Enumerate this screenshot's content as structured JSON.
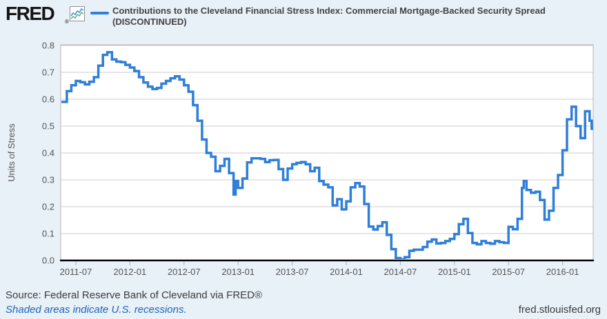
{
  "header": {
    "logo_text": "FRED",
    "registered_mark": "®",
    "legend_label_line1": "Contributions to the Cleveland Financial Stress Index: Commercial Mortgage-Backed Security Spread",
    "legend_label_line2": "(DISCONTINUED)"
  },
  "footer": {
    "source_text": "Source: Federal Reserve Bank of Cleveland via FRED®",
    "recession_note": "Shaded areas indicate U.S. recessions.",
    "site_url": "fred.stlouisfed.org"
  },
  "colors": {
    "background": "#e8f0f8",
    "plot_background": "#ffffff",
    "line": "#2f7ed8",
    "gridline": "#cccccc",
    "plot_border": "#b3b3b3",
    "axis_line": "#000000",
    "tick_mark": "#9db3c8",
    "tick_text": "#555555",
    "title_text": "#434343",
    "link_blue": "#1b66b5",
    "icon_line_blue": "#4a90d9",
    "icon_line_green": "#5cb88a"
  },
  "chart_data": {
    "type": "line",
    "interpolation": "step-after",
    "title": "Contributions to the Cleveland Financial Stress Index: Commercial Mortgage-Backed Security Spread (DISCONTINUED)",
    "xlabel": "",
    "ylabel": "Units of Stress",
    "ylim": [
      0.0,
      0.8
    ],
    "yticks": [
      0.0,
      0.1,
      0.2,
      0.3,
      0.4,
      0.5,
      0.6,
      0.7,
      0.8
    ],
    "xtick_labels": [
      "2011-07",
      "2012-01",
      "2012-07",
      "2013-01",
      "2013-07",
      "2014-01",
      "2014-07",
      "2015-01",
      "2015-07",
      "2016-01"
    ],
    "grid": true,
    "legend_position": "top",
    "series": [
      {
        "name": "Contributions to the Cleveland Financial Stress Index: Commercial Mortgage-Backed Security Spread (DISCONTINUED)",
        "points": [
          [
            "2011-05-13",
            0.59
          ],
          [
            "2011-06-01",
            0.63
          ],
          [
            "2011-06-16",
            0.652
          ],
          [
            "2011-07-01",
            0.668
          ],
          [
            "2011-07-16",
            0.663
          ],
          [
            "2011-08-01",
            0.655
          ],
          [
            "2011-08-16",
            0.665
          ],
          [
            "2011-09-01",
            0.682
          ],
          [
            "2011-09-16",
            0.725
          ],
          [
            "2011-10-01",
            0.765
          ],
          [
            "2011-10-16",
            0.775
          ],
          [
            "2011-11-01",
            0.748
          ],
          [
            "2011-11-16",
            0.74
          ],
          [
            "2011-12-01",
            0.738
          ],
          [
            "2011-12-16",
            0.728
          ],
          [
            "2012-01-01",
            0.718
          ],
          [
            "2012-01-16",
            0.705
          ],
          [
            "2012-02-01",
            0.682
          ],
          [
            "2012-02-16",
            0.662
          ],
          [
            "2012-03-01",
            0.647
          ],
          [
            "2012-03-16",
            0.638
          ],
          [
            "2012-04-01",
            0.642
          ],
          [
            "2012-04-16",
            0.658
          ],
          [
            "2012-05-01",
            0.668
          ],
          [
            "2012-05-16",
            0.678
          ],
          [
            "2012-06-01",
            0.685
          ],
          [
            "2012-06-16",
            0.673
          ],
          [
            "2012-07-01",
            0.652
          ],
          [
            "2012-07-16",
            0.628
          ],
          [
            "2012-08-01",
            0.578
          ],
          [
            "2012-08-16",
            0.52
          ],
          [
            "2012-09-01",
            0.45
          ],
          [
            "2012-09-16",
            0.4
          ],
          [
            "2012-10-01",
            0.386
          ],
          [
            "2012-10-16",
            0.332
          ],
          [
            "2012-11-01",
            0.352
          ],
          [
            "2012-11-16",
            0.378
          ],
          [
            "2012-12-01",
            0.325
          ],
          [
            "2012-12-16",
            0.245
          ],
          [
            "2012-12-23",
            0.295
          ],
          [
            "2013-01-01",
            0.27
          ],
          [
            "2013-01-16",
            0.305
          ],
          [
            "2013-02-01",
            0.365
          ],
          [
            "2013-02-16",
            0.38
          ],
          [
            "2013-03-01",
            0.38
          ],
          [
            "2013-03-16",
            0.378
          ],
          [
            "2013-04-01",
            0.366
          ],
          [
            "2013-04-16",
            0.373
          ],
          [
            "2013-05-01",
            0.374
          ],
          [
            "2013-05-16",
            0.34
          ],
          [
            "2013-06-01",
            0.3
          ],
          [
            "2013-06-16",
            0.342
          ],
          [
            "2013-07-01",
            0.358
          ],
          [
            "2013-07-16",
            0.363
          ],
          [
            "2013-08-01",
            0.366
          ],
          [
            "2013-08-16",
            0.358
          ],
          [
            "2013-09-01",
            0.332
          ],
          [
            "2013-09-16",
            0.345
          ],
          [
            "2013-10-01",
            0.295
          ],
          [
            "2013-10-16",
            0.282
          ],
          [
            "2013-11-01",
            0.272
          ],
          [
            "2013-11-16",
            0.205
          ],
          [
            "2013-12-01",
            0.228
          ],
          [
            "2013-12-16",
            0.19
          ],
          [
            "2014-01-01",
            0.22
          ],
          [
            "2014-01-16",
            0.272
          ],
          [
            "2014-02-01",
            0.288
          ],
          [
            "2014-02-16",
            0.275
          ],
          [
            "2014-03-01",
            0.21
          ],
          [
            "2014-03-16",
            0.126
          ],
          [
            "2014-04-01",
            0.115
          ],
          [
            "2014-04-16",
            0.128
          ],
          [
            "2014-05-01",
            0.142
          ],
          [
            "2014-05-16",
            0.095
          ],
          [
            "2014-06-01",
            0.042
          ],
          [
            "2014-06-16",
            0.009
          ],
          [
            "2014-07-01",
            0.004
          ],
          [
            "2014-07-16",
            0.012
          ],
          [
            "2014-08-01",
            0.036
          ],
          [
            "2014-08-16",
            0.04
          ],
          [
            "2014-09-01",
            0.04
          ],
          [
            "2014-09-16",
            0.05
          ],
          [
            "2014-10-01",
            0.07
          ],
          [
            "2014-10-16",
            0.078
          ],
          [
            "2014-11-01",
            0.063
          ],
          [
            "2014-11-16",
            0.065
          ],
          [
            "2014-12-01",
            0.072
          ],
          [
            "2014-12-16",
            0.08
          ],
          [
            "2015-01-01",
            0.098
          ],
          [
            "2015-01-16",
            0.135
          ],
          [
            "2015-02-01",
            0.155
          ],
          [
            "2015-02-16",
            0.102
          ],
          [
            "2015-03-01",
            0.065
          ],
          [
            "2015-03-16",
            0.06
          ],
          [
            "2015-04-01",
            0.072
          ],
          [
            "2015-04-16",
            0.065
          ],
          [
            "2015-05-01",
            0.062
          ],
          [
            "2015-05-16",
            0.072
          ],
          [
            "2015-06-01",
            0.068
          ],
          [
            "2015-06-16",
            0.065
          ],
          [
            "2015-07-01",
            0.125
          ],
          [
            "2015-07-16",
            0.116
          ],
          [
            "2015-08-01",
            0.155
          ],
          [
            "2015-08-16",
            0.27
          ],
          [
            "2015-08-22",
            0.295
          ],
          [
            "2015-09-01",
            0.262
          ],
          [
            "2015-09-16",
            0.252
          ],
          [
            "2015-10-01",
            0.256
          ],
          [
            "2015-10-16",
            0.225
          ],
          [
            "2015-11-01",
            0.152
          ],
          [
            "2015-11-16",
            0.185
          ],
          [
            "2015-12-01",
            0.27
          ],
          [
            "2015-12-16",
            0.318
          ],
          [
            "2016-01-01",
            0.41
          ],
          [
            "2016-01-16",
            0.525
          ],
          [
            "2016-02-01",
            0.572
          ],
          [
            "2016-02-16",
            0.5
          ],
          [
            "2016-03-01",
            0.455
          ],
          [
            "2016-03-16",
            0.555
          ],
          [
            "2016-04-01",
            0.52
          ],
          [
            "2016-04-08",
            0.49
          ]
        ]
      }
    ]
  }
}
